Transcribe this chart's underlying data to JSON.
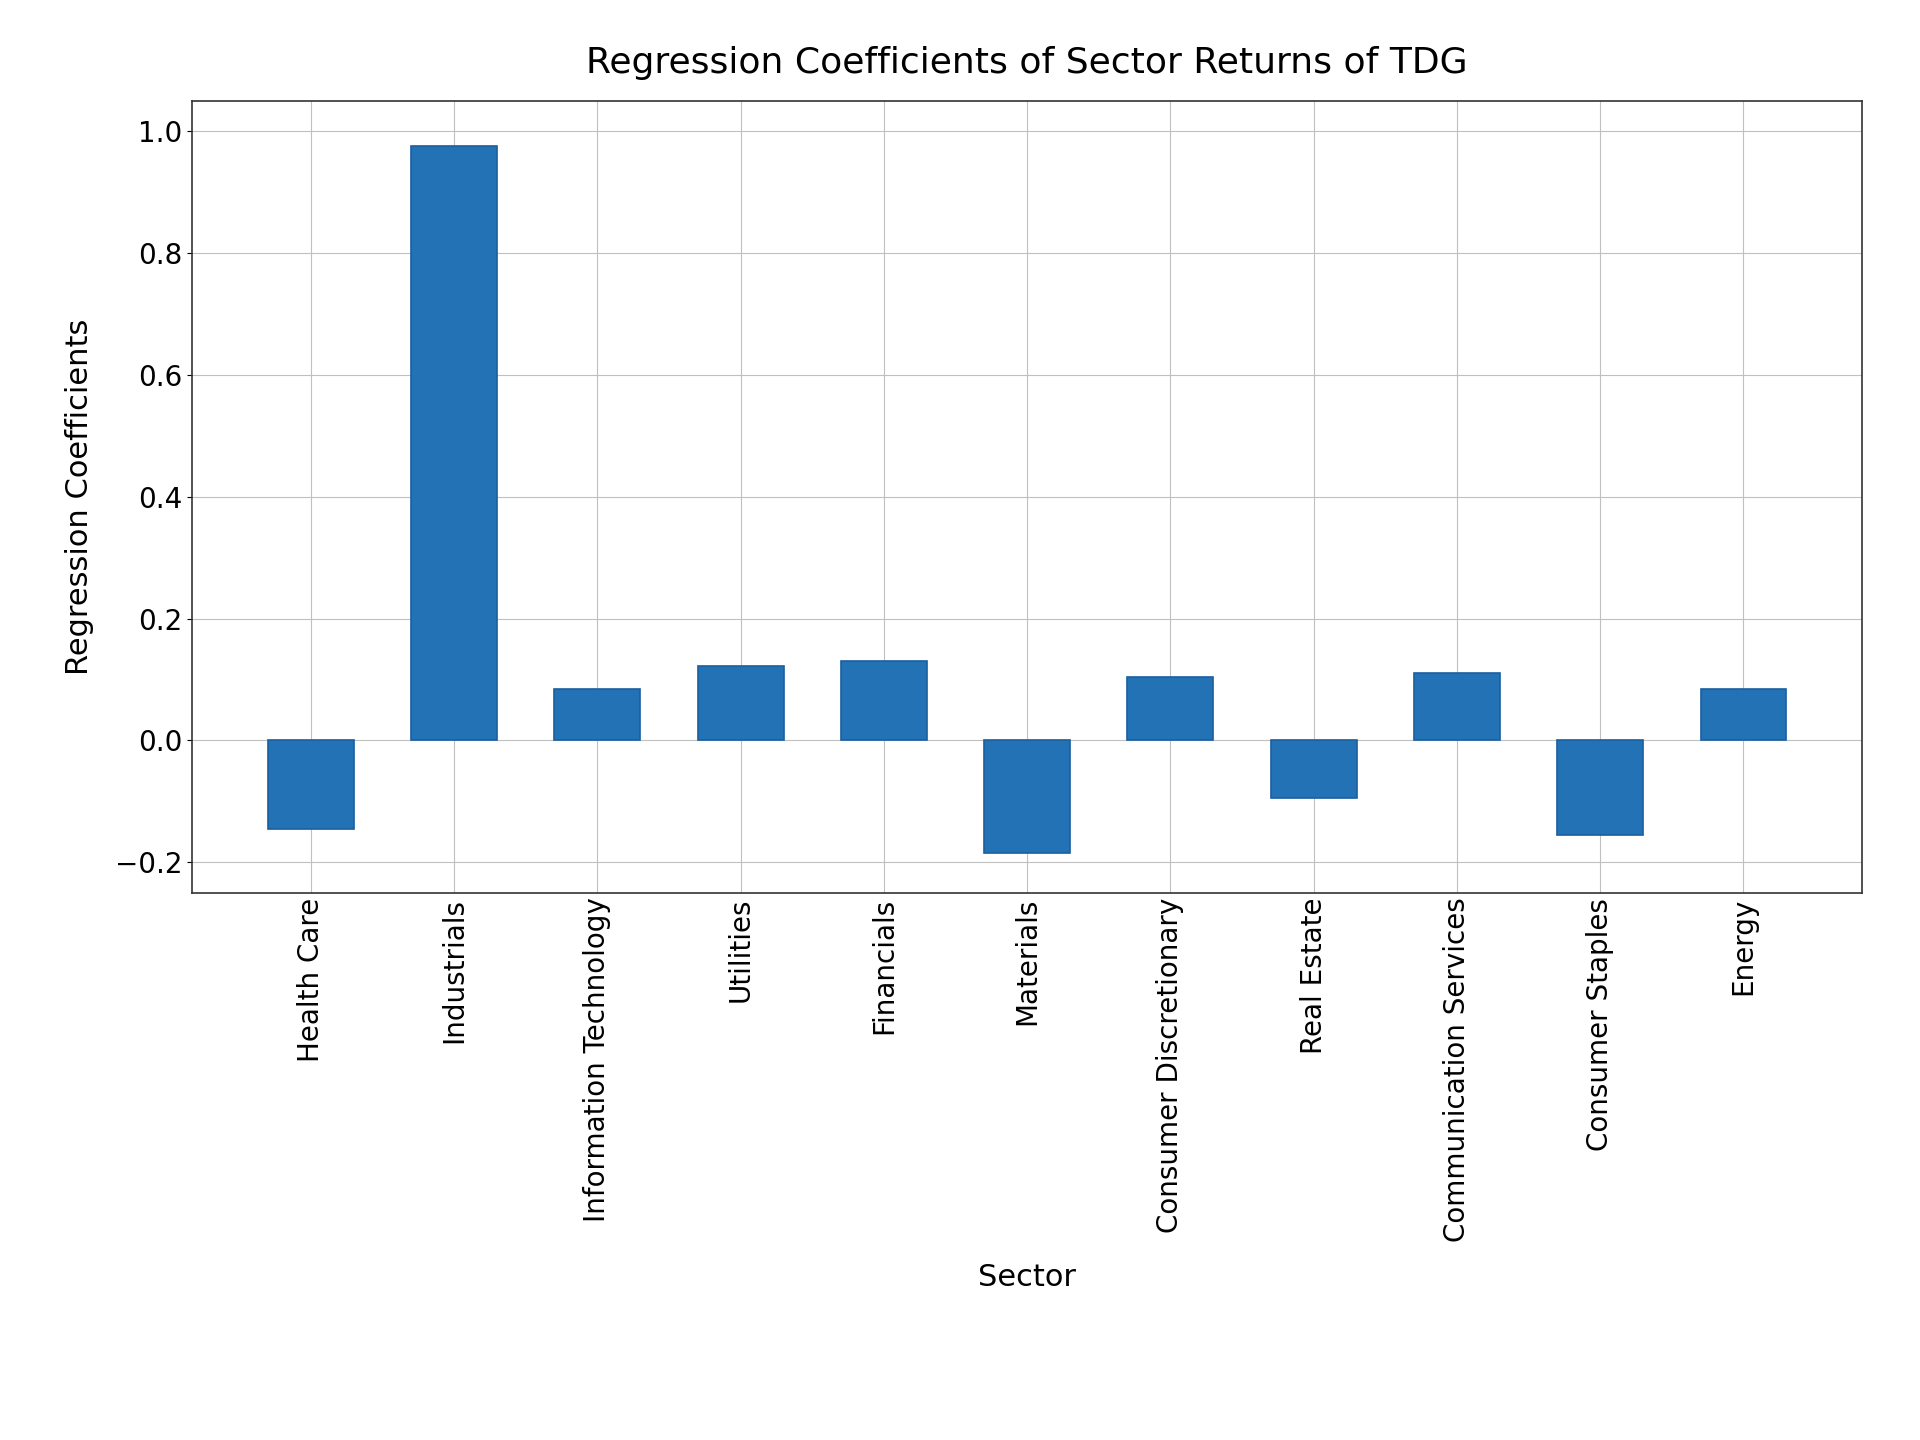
{
  "title": "Regression Coefficients of Sector Returns of TDG",
  "xlabel": "Sector",
  "ylabel": "Regression Coefficients",
  "categories": [
    "Health Care",
    "Industrials",
    "Information Technology",
    "Utilities",
    "Financials",
    "Materials",
    "Consumer Discretionary",
    "Real Estate",
    "Communication Services",
    "Consumer Staples",
    "Energy"
  ],
  "values": [
    -0.145,
    0.975,
    0.085,
    0.123,
    0.13,
    -0.185,
    0.105,
    -0.095,
    0.11,
    -0.155,
    0.085
  ],
  "bar_color": "#2372b5",
  "bar_edgecolor": "#1a5fa0",
  "ylim": [
    -0.25,
    1.05
  ],
  "yticks": [
    -0.2,
    0.0,
    0.2,
    0.4,
    0.6,
    0.8,
    1.0
  ],
  "title_fontsize": 26,
  "label_fontsize": 22,
  "tick_fontsize": 20,
  "grid_color": "#c0c0c0",
  "background_color": "#ffffff",
  "figsize": [
    19.2,
    14.4
  ],
  "dpi": 100
}
